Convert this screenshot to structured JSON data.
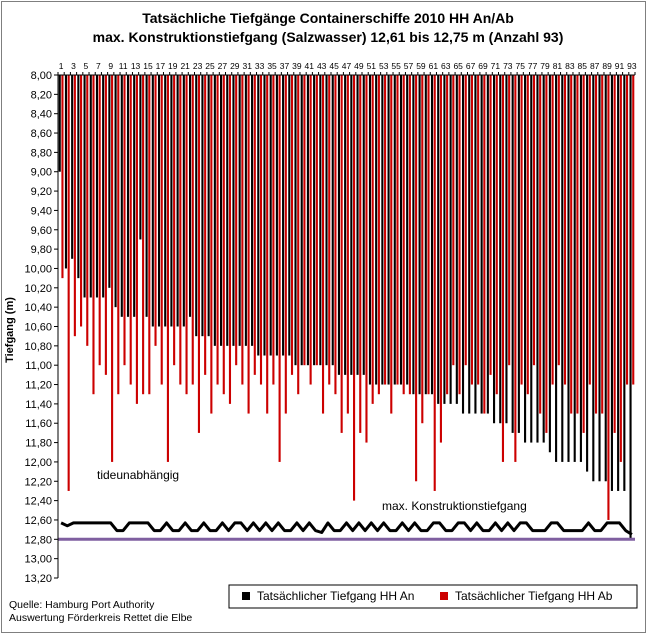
{
  "chart_data": {
    "type": "bar",
    "title": "Tatsächliche Tiefgänge Containerschiffe 2010 HH An/Ab",
    "subtitle": "max. Konstruktionstiefgang (Salzwasser) 12,61 bis 12,75 m (Anzahl 93)",
    "ylabel": "Tiefgang (m)",
    "ylim": [
      8.0,
      13.2
    ],
    "y_ticks": [
      "8,00",
      "8,20",
      "8,40",
      "8,60",
      "8,80",
      "9,00",
      "9,20",
      "9,40",
      "9,60",
      "9,80",
      "10,00",
      "10,20",
      "10,40",
      "10,60",
      "10,80",
      "11,00",
      "11,20",
      "11,40",
      "11,60",
      "11,80",
      "12,00",
      "12,20",
      "12,40",
      "12,60",
      "12,80",
      "13,00",
      "13,20"
    ],
    "y_inverted": true,
    "x_ticks": [
      "1",
      "3",
      "5",
      "7",
      "9",
      "11",
      "13",
      "15",
      "17",
      "19",
      "21",
      "23",
      "25",
      "27",
      "29",
      "31",
      "33",
      "35",
      "37",
      "39",
      "41",
      "43",
      "45",
      "47",
      "49",
      "51",
      "53",
      "55",
      "57",
      "59",
      "61",
      "63",
      "65",
      "67",
      "69",
      "71",
      "73",
      "75",
      "77",
      "79",
      "81",
      "83",
      "85",
      "87",
      "89",
      "91",
      "93"
    ],
    "grid": false,
    "legend_position": "bottom",
    "series": [
      {
        "name": "Tatsächlicher Tiefgang HH An",
        "color": "#000000",
        "values": [
          9.0,
          10.0,
          9.9,
          10.1,
          10.3,
          10.3,
          10.3,
          10.3,
          10.2,
          10.4,
          10.5,
          10.5,
          10.5,
          9.7,
          10.5,
          10.6,
          10.6,
          10.6,
          10.6,
          10.6,
          10.6,
          10.5,
          10.7,
          10.7,
          10.7,
          10.8,
          10.8,
          10.8,
          10.8,
          10.8,
          10.8,
          10.8,
          10.9,
          10.9,
          10.9,
          10.9,
          10.9,
          10.9,
          11.0,
          11.0,
          11.0,
          11.0,
          11.0,
          11.0,
          11.0,
          11.1,
          11.1,
          11.1,
          11.1,
          11.1,
          11.2,
          11.2,
          11.2,
          11.2,
          11.2,
          11.2,
          11.2,
          11.3,
          11.3,
          11.3,
          11.3,
          11.4,
          11.4,
          11.4,
          11.4,
          11.5,
          11.5,
          11.5,
          11.5,
          11.5,
          11.6,
          11.6,
          11.6,
          11.7,
          11.7,
          11.8,
          11.8,
          11.8,
          11.8,
          11.9,
          12.0,
          12.0,
          12.0,
          12.0,
          12.0,
          12.1,
          12.2,
          12.2,
          12.2,
          12.3,
          12.3,
          12.3,
          12.8
        ]
      },
      {
        "name": "Tatsächlicher Tiefgang HH Ab",
        "color": "#cc0000",
        "values": [
          10.1,
          12.3,
          10.7,
          10.6,
          10.8,
          11.3,
          11.0,
          11.1,
          12.0,
          11.3,
          11.0,
          11.2,
          11.4,
          11.3,
          11.3,
          10.8,
          11.2,
          12.0,
          11.0,
          11.2,
          11.3,
          11.2,
          11.7,
          11.1,
          11.5,
          11.2,
          11.3,
          11.4,
          11.0,
          11.2,
          11.5,
          11.1,
          11.2,
          11.5,
          11.2,
          12.0,
          11.5,
          11.1,
          11.3,
          11.0,
          11.2,
          11.0,
          11.5,
          11.2,
          11.3,
          11.7,
          11.5,
          12.4,
          11.7,
          11.8,
          11.4,
          11.3,
          11.2,
          11.5,
          11.2,
          11.3,
          11.3,
          12.2,
          11.6,
          11.3,
          12.3,
          11.8,
          11.3,
          11.0,
          11.3,
          11.0,
          11.2,
          11.2,
          11.5,
          11.1,
          11.3,
          12.0,
          11.0,
          12.0,
          11.2,
          11.3,
          11.0,
          11.5,
          11.7,
          11.2,
          11.0,
          11.2,
          11.5,
          11.5,
          11.7,
          11.2,
          11.5,
          11.5,
          12.6,
          11.7,
          12.0,
          11.2,
          11.2
        ]
      },
      {
        "name": "max. Konstruktionstiefgang",
        "color": "#000000",
        "values": [
          12.63,
          12.66,
          12.63,
          12.63,
          12.63,
          12.63,
          12.63,
          12.63,
          12.63,
          12.71,
          12.71,
          12.63,
          12.63,
          12.63,
          12.63,
          12.71,
          12.71,
          12.63,
          12.71,
          12.71,
          12.63,
          12.71,
          12.71,
          12.63,
          12.71,
          12.71,
          12.63,
          12.71,
          12.63,
          12.63,
          12.71,
          12.63,
          12.71,
          12.63,
          12.71,
          12.63,
          12.71,
          12.71,
          12.63,
          12.71,
          12.63,
          12.71,
          12.73,
          12.63,
          12.71,
          12.71,
          12.63,
          12.71,
          12.63,
          12.71,
          12.63,
          12.71,
          12.63,
          12.71,
          12.71,
          12.63,
          12.71,
          12.63,
          12.71,
          12.71,
          12.63,
          12.63,
          12.71,
          12.71,
          12.63,
          12.63,
          12.71,
          12.63,
          12.71,
          12.71,
          12.63,
          12.71,
          12.63,
          12.71,
          12.63,
          12.63,
          12.71,
          12.71,
          12.71,
          12.63,
          12.63,
          12.71,
          12.71,
          12.71,
          12.71,
          12.63,
          12.71,
          12.71,
          12.63,
          12.63,
          12.63,
          12.71,
          12.75
        ]
      },
      {
        "name": "tideunabhängig",
        "color": "#7f5fa0",
        "value": 12.8
      }
    ],
    "annotations": [
      "tideunabhängig",
      "max. Konstruktionstiefgang"
    ]
  },
  "source_lines": [
    "Quelle: Hamburg Port Authority",
    "Auswertung Förderkreis Rettet die Elbe"
  ]
}
